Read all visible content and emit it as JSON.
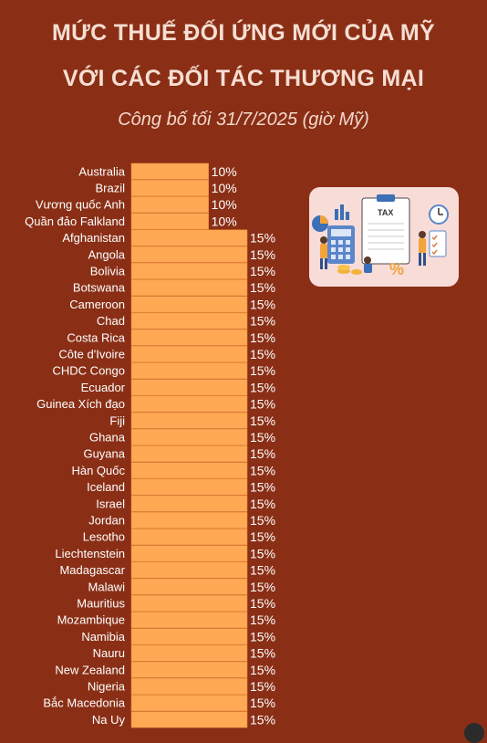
{
  "header": {
    "title_line1": "MỨC THUẾ ĐỐI ỨNG MỚI CỦA MỸ",
    "title_line2": "VỚI CÁC ĐỐI TÁC THƯƠNG MẠI",
    "subtitle": "Công bố tối 31/7/2025 (giờ Mỹ)"
  },
  "illustration": {
    "icon": "tax-document-illustration",
    "label": "TAX"
  },
  "colors": {
    "background": "#8a2f16",
    "bar": "#ffa955",
    "bar_stroke": "#e9893a",
    "text": "#ffffff"
  },
  "chart_data": {
    "type": "bar",
    "orientation": "horizontal",
    "categories": [
      "Australia",
      "Brazil",
      "Vương quốc Anh",
      "Quần đảo Falkland",
      "Afghanistan",
      "Angola",
      "Bolivia",
      "Botswana",
      "Cameroon",
      "Chad",
      "Costa Rica",
      "Côte d'Ivoire",
      "CHDC Congo",
      "Ecuador",
      "Guinea Xích đạo",
      "Fiji",
      "Ghana",
      "Guyana",
      "Hàn Quốc",
      "Iceland",
      "Israel",
      "Jordan",
      "Lesotho",
      "Liechtenstein",
      "Madagascar",
      "Malawi",
      "Mauritius",
      "Mozambique",
      "Namibia",
      "Nauru",
      "New Zealand",
      "Nigeria",
      "Bắc Macedonia",
      "Na Uy"
    ],
    "values": [
      10,
      10,
      10,
      10,
      15,
      15,
      15,
      15,
      15,
      15,
      15,
      15,
      15,
      15,
      15,
      15,
      15,
      15,
      15,
      15,
      15,
      15,
      15,
      15,
      15,
      15,
      15,
      15,
      15,
      15,
      15,
      15,
      15,
      15
    ],
    "value_labels": [
      "10%",
      "10%",
      "10%",
      "10%",
      "15%",
      "15%",
      "15%",
      "15%",
      "15%",
      "15%",
      "15%",
      "15%",
      "15%",
      "15%",
      "15%",
      "15%",
      "15%",
      "15%",
      "15%",
      "15%",
      "15%",
      "15%",
      "15%",
      "15%",
      "15%",
      "15%",
      "15%",
      "15%",
      "15%",
      "15%",
      "15%",
      "15%",
      "15%",
      "15%"
    ],
    "unit": "%",
    "xlim": [
      0,
      15
    ],
    "grid": false,
    "legend": "none"
  }
}
